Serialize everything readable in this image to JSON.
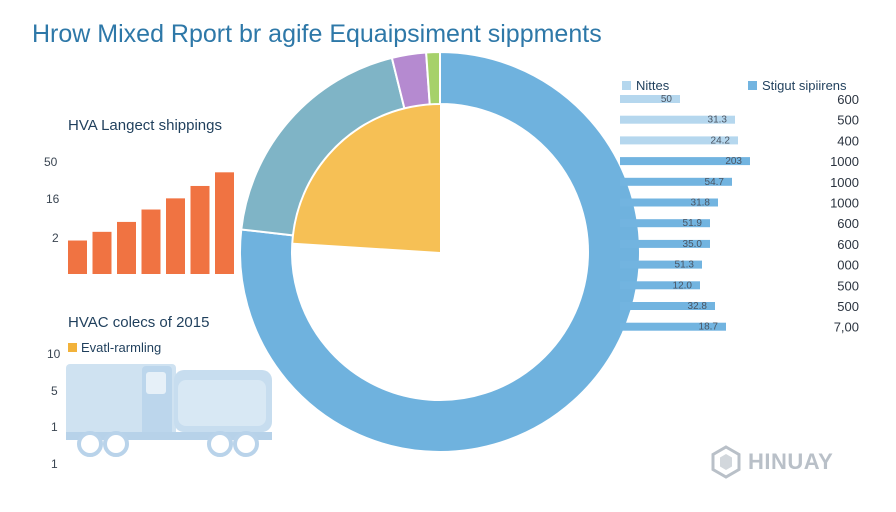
{
  "title": "Hrow Mixed Rport br agife Equaipsiment sippments",
  "watermark": "HINUAY",
  "chart_data": [
    {
      "type": "bar",
      "title": "HVA Langect shippings",
      "yticks": [
        "50",
        "16",
        "2"
      ],
      "values": [
        27,
        34,
        42,
        52,
        61,
        71,
        82
      ],
      "ylim": [
        0,
        100
      ],
      "colors": [
        "#f07342"
      ],
      "grid": false
    },
    {
      "type": "pie",
      "slices": [
        {
          "value": 69.5,
          "color": "#6fb2de"
        },
        {
          "value": 17.5,
          "color": "#7fb4c6"
        },
        {
          "value": 2.5,
          "color": "#b58ad0"
        },
        {
          "value": 1.0,
          "color": "#a6d16a"
        }
      ],
      "inner_slice": {
        "value": 24,
        "color": "#f6c055"
      }
    },
    {
      "type": "bar",
      "orientation": "horizontal",
      "legend": [
        "Nittes",
        "Stigut sipiirens"
      ],
      "bar_labels": [
        "50",
        "31.3",
        "24.2",
        "203",
        "54.7",
        "31.8",
        "51.9",
        "35.0",
        "51.3",
        "12.0",
        "32.8",
        "18.7"
      ],
      "right_labels": [
        "600",
        "500",
        "400",
        "1000",
        "1000",
        "1000",
        "600",
        "600",
        "000",
        "500",
        "500",
        "7,00"
      ],
      "values": [
        60,
        115,
        118,
        130,
        112,
        98,
        90,
        90,
        82,
        80,
        95,
        106
      ],
      "colors": [
        "#b5d7ee",
        "#72b4e0"
      ],
      "grid": false
    },
    {
      "type": "other",
      "title": "HVAC colecs of 2015",
      "legend": [
        "Evatl-rarmling"
      ],
      "yticks": [
        "10",
        "5",
        "1",
        "1"
      ]
    }
  ]
}
